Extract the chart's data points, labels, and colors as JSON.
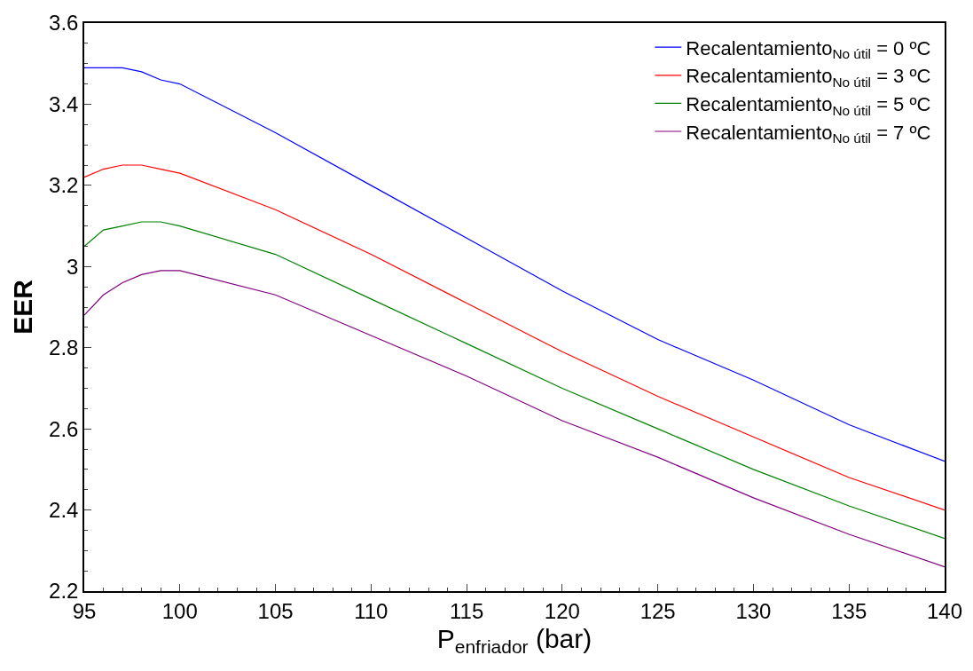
{
  "chart_data": {
    "type": "line",
    "xlabel": "P$_{enfriador}$ (bar)",
    "ylabel": "EER",
    "x": [
      95,
      96,
      97,
      98,
      99,
      100,
      105,
      110,
      115,
      120,
      125,
      130,
      135,
      140
    ],
    "series": [
      {
        "name": "Recalentamiento$_{No útil}$ = 0 ºC",
        "color": "#0000ff",
        "values": [
          3.49,
          3.49,
          3.49,
          3.48,
          3.46,
          3.45,
          3.33,
          3.2,
          3.07,
          2.94,
          2.82,
          2.72,
          2.61,
          2.52
        ]
      },
      {
        "name": "Recalentamiento$_{No útil}$ = 3 ºC",
        "color": "#ff0000",
        "values": [
          3.22,
          3.24,
          3.25,
          3.25,
          3.24,
          3.23,
          3.14,
          3.03,
          2.91,
          2.79,
          2.68,
          2.58,
          2.48,
          2.4
        ]
      },
      {
        "name": "Recalentamiento$_{No útil}$ = 5 ºC",
        "color": "#008000",
        "values": [
          3.05,
          3.09,
          3.1,
          3.11,
          3.11,
          3.1,
          3.03,
          2.92,
          2.81,
          2.7,
          2.6,
          2.5,
          2.41,
          2.33
        ]
      },
      {
        "name": "Recalentamiento$_{No útil}$ = 7 ºC",
        "color": "#800080",
        "values": [
          2.88,
          2.93,
          2.96,
          2.98,
          2.99,
          2.99,
          2.93,
          2.83,
          2.73,
          2.62,
          2.53,
          2.43,
          2.34,
          2.26
        ]
      }
    ],
    "xlim": [
      95,
      140
    ],
    "xticks": [
      95,
      100,
      105,
      110,
      115,
      120,
      125,
      130,
      135,
      140
    ],
    "ylim": [
      2.2,
      3.6
    ],
    "yticks": [
      2.2,
      2.4,
      2.6,
      2.8,
      3,
      3.2,
      3.4,
      3.6
    ],
    "legend": "top right",
    "marker": "none",
    "line_style": "solid"
  }
}
